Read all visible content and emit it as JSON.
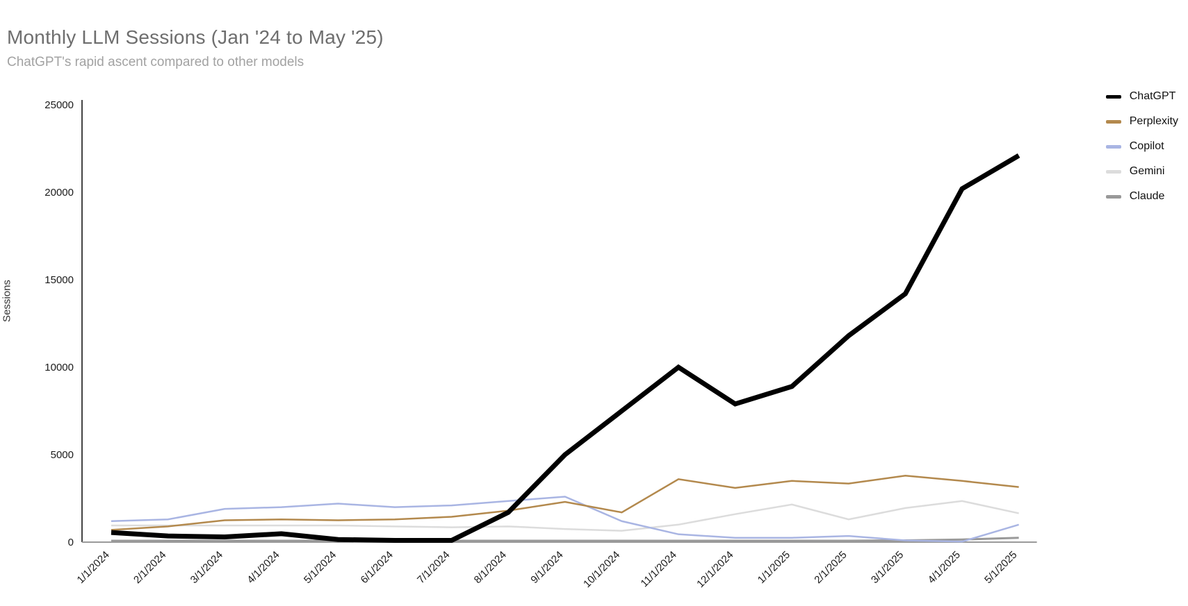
{
  "header": {
    "title": "Monthly LLM Sessions (Jan '24 to May '25)",
    "subtitle": "ChatGPT's rapid ascent compared to other models"
  },
  "chart_data": {
    "type": "line",
    "title": "Monthly LLM Sessions (Jan '24 to May '25)",
    "subtitle": "ChatGPT's rapid ascent compared to other models",
    "xlabel": "",
    "ylabel": "Sessions",
    "categories": [
      "1/1/2024",
      "2/1/2024",
      "3/1/2024",
      "4/1/2024",
      "5/1/2024",
      "6/1/2024",
      "7/1/2024",
      "8/1/2024",
      "9/1/2024",
      "10/1/2024",
      "11/1/2024",
      "12/1/2024",
      "1/1/2025",
      "2/1/2025",
      "3/1/2025",
      "4/1/2025",
      "5/1/2025"
    ],
    "yticks": [
      0,
      5000,
      10000,
      15000,
      20000,
      25000
    ],
    "ylim": [
      0,
      25000
    ],
    "grid": false,
    "legend_position": "top-right",
    "background": "#ffffff",
    "series": [
      {
        "name": "ChatGPT",
        "color": "#000000",
        "values": [
          550,
          350,
          300,
          480,
          150,
          100,
          100,
          1700,
          5000,
          7500,
          10000,
          7900,
          8900,
          11800,
          14200,
          20200,
          22100
        ]
      },
      {
        "name": "Perplexity",
        "color": "#b3894d",
        "values": [
          700,
          900,
          1250,
          1300,
          1250,
          1300,
          1450,
          1800,
          2300,
          1700,
          3600,
          3100,
          3500,
          3350,
          3800,
          3500,
          3150
        ]
      },
      {
        "name": "Copilot",
        "color": "#a9b5e3",
        "values": [
          1200,
          1300,
          1900,
          2000,
          2200,
          2000,
          2100,
          2350,
          2600,
          1200,
          450,
          250,
          250,
          350,
          100,
          30,
          1000
        ]
      },
      {
        "name": "Gemini",
        "color": "#dcdcdc",
        "values": [
          950,
          950,
          950,
          950,
          950,
          900,
          850,
          900,
          750,
          650,
          1000,
          1600,
          2150,
          1300,
          1950,
          2350,
          1650
        ]
      },
      {
        "name": "Claude",
        "color": "#999999",
        "values": [
          80,
          80,
          80,
          80,
          80,
          80,
          80,
          80,
          80,
          80,
          80,
          80,
          80,
          80,
          100,
          150,
          250
        ]
      }
    ]
  }
}
